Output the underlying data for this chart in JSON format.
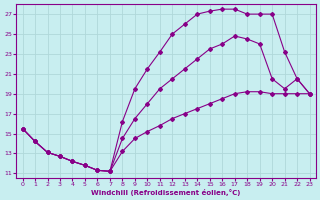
{
  "xlabel": "Windchill (Refroidissement éolien,°C)",
  "bg_color": "#c8eef0",
  "grid_color": "#b0d8da",
  "line_color": "#880088",
  "xlim": [
    -0.5,
    23.5
  ],
  "ylim": [
    10.5,
    28.0
  ],
  "yticks": [
    11,
    13,
    15,
    17,
    19,
    21,
    23,
    25,
    27
  ],
  "xticks": [
    0,
    1,
    2,
    3,
    4,
    5,
    6,
    7,
    8,
    9,
    10,
    11,
    12,
    13,
    14,
    15,
    16,
    17,
    18,
    19,
    20,
    21,
    22,
    23
  ],
  "curve1_x": [
    0,
    1,
    2,
    3,
    4,
    5,
    6,
    7,
    8,
    9,
    10,
    11,
    12,
    13,
    14,
    15,
    16,
    17,
    18,
    19,
    20,
    21,
    22,
    23
  ],
  "curve1_y": [
    15.5,
    14.2,
    13.1,
    12.7,
    12.2,
    11.8,
    11.3,
    11.2,
    16.2,
    19.5,
    21.5,
    23.2,
    25.0,
    26.0,
    27.0,
    27.3,
    27.5,
    27.5,
    27.0,
    27.0,
    27.0,
    23.2,
    20.5,
    19.0
  ],
  "curve2_x": [
    0,
    1,
    2,
    3,
    4,
    5,
    6,
    7,
    8,
    9,
    10,
    11,
    12,
    13,
    14,
    15,
    16,
    17,
    18,
    19,
    20,
    21,
    22,
    23
  ],
  "curve2_y": [
    15.5,
    14.2,
    13.1,
    12.7,
    12.2,
    11.8,
    11.3,
    11.2,
    14.5,
    16.5,
    18.0,
    19.5,
    20.5,
    21.5,
    22.5,
    23.5,
    24.0,
    24.8,
    24.5,
    24.0,
    20.5,
    19.5,
    20.5,
    19.0
  ],
  "curve3_x": [
    0,
    1,
    2,
    3,
    4,
    5,
    6,
    7,
    8,
    9,
    10,
    11,
    12,
    13,
    14,
    15,
    16,
    17,
    18,
    19,
    20,
    21,
    22,
    23
  ],
  "curve3_y": [
    15.5,
    14.2,
    13.1,
    12.7,
    12.2,
    11.8,
    11.3,
    11.2,
    13.2,
    14.5,
    15.2,
    15.8,
    16.5,
    17.0,
    17.5,
    18.0,
    18.5,
    19.0,
    19.2,
    19.2,
    19.0,
    19.0,
    19.0,
    19.0
  ]
}
